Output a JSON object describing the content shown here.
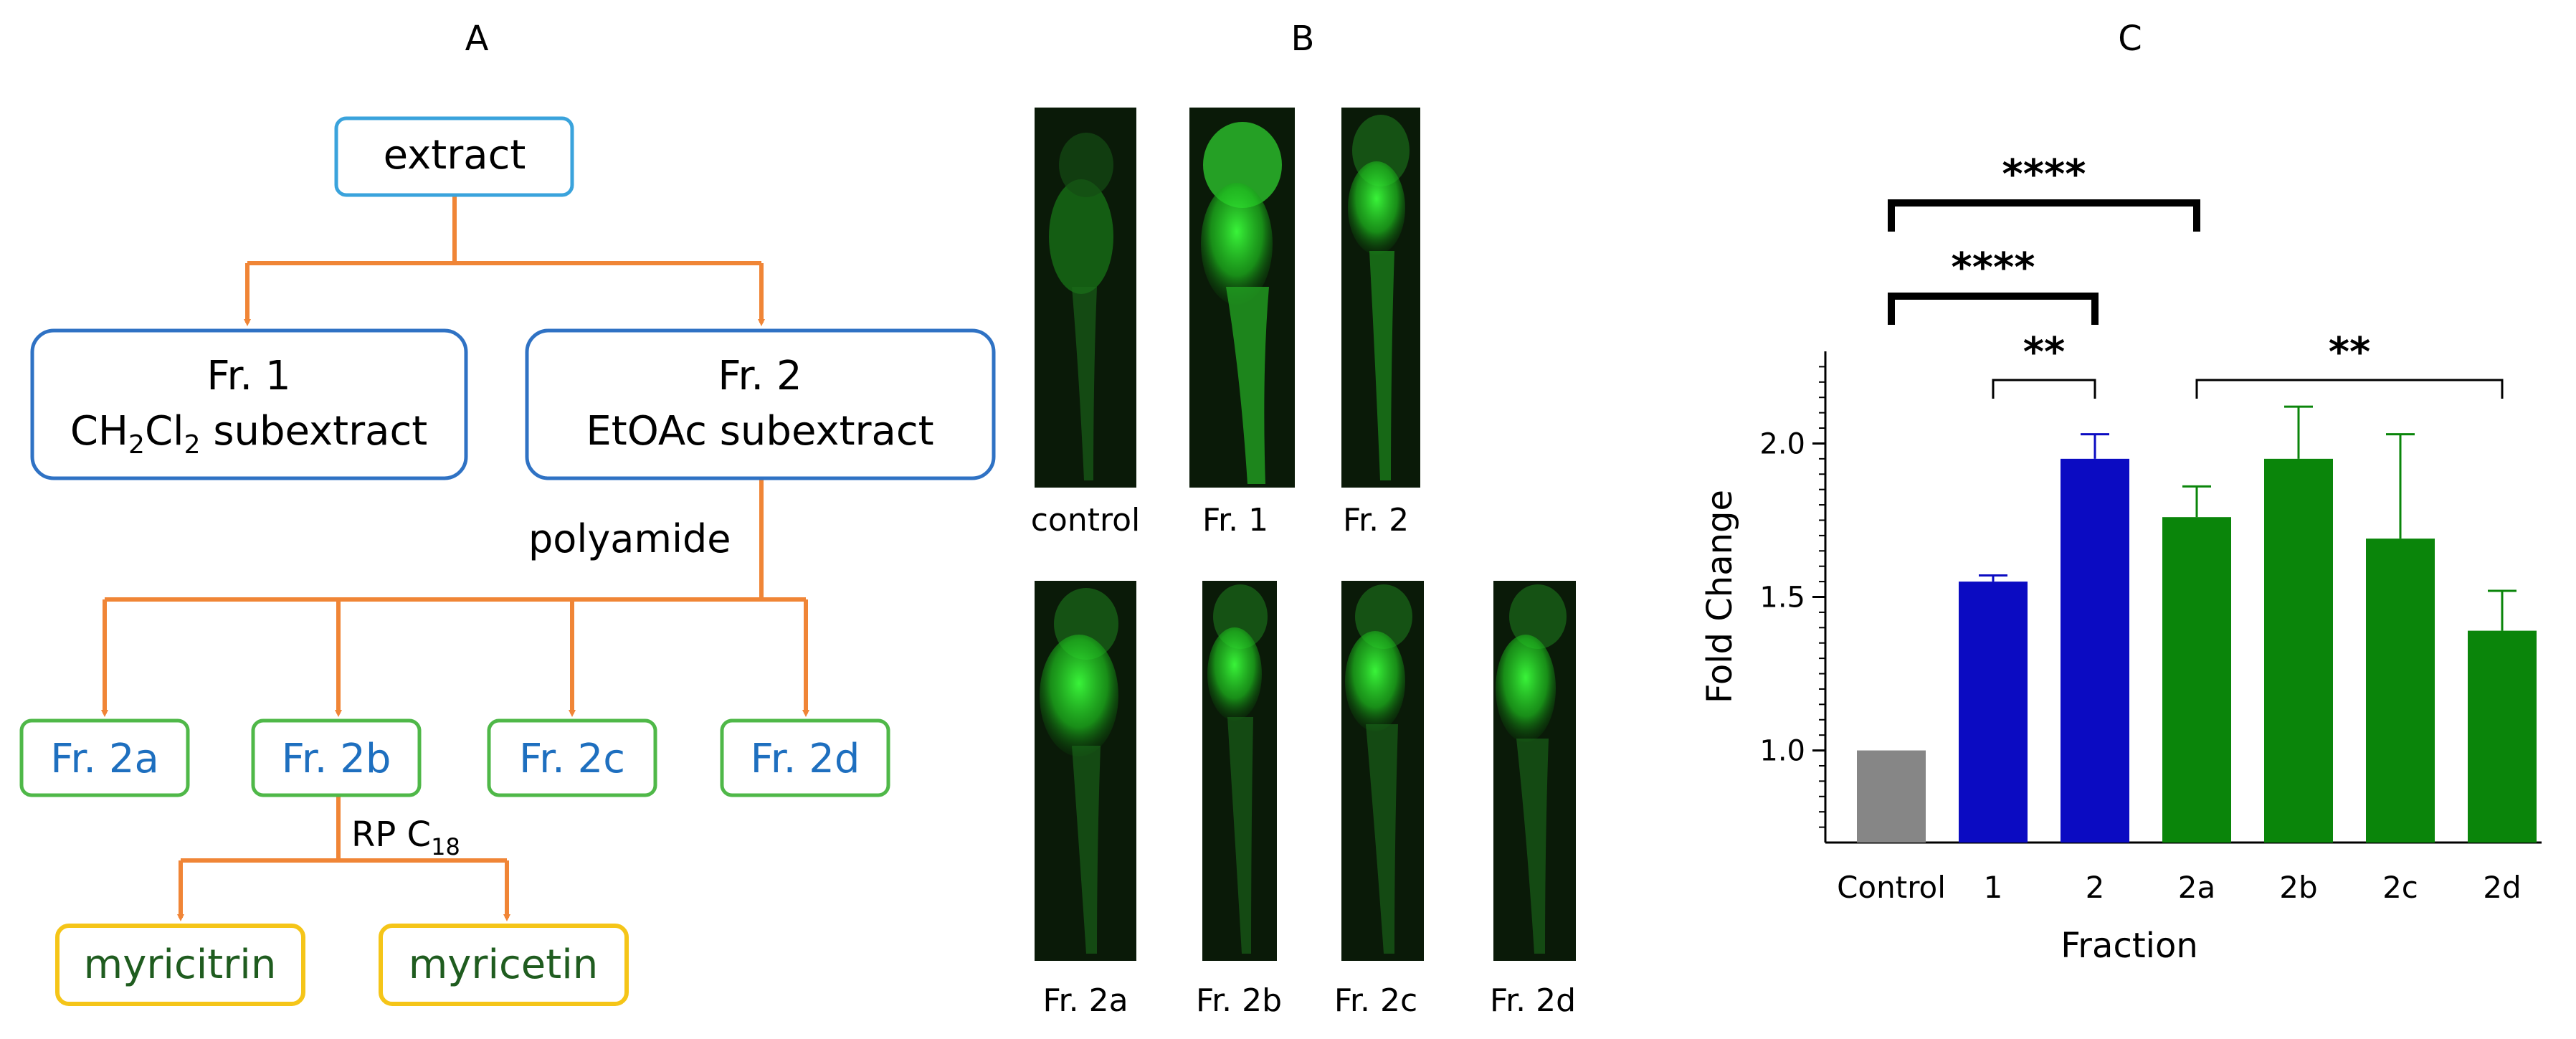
{
  "panels": {
    "a_label": "A",
    "b_label": "B",
    "c_label": "C"
  },
  "flowchart": {
    "root": "extract",
    "fr1_title": "Fr. 1",
    "fr1_sub_prefix": "CH",
    "fr1_sub_2a": "2",
    "fr1_sub_mid": "Cl",
    "fr1_sub_2b": "2",
    "fr1_sub_suffix": " subextract",
    "fr2_title": "Fr. 2",
    "fr2_sub": "EtOAc subextract",
    "step1": "polyamide",
    "fr2a": "Fr. 2a",
    "fr2b": "Fr. 2b",
    "fr2c": "Fr. 2c",
    "fr2d": "Fr. 2d",
    "step2_prefix": "RP C",
    "step2_sub": "18",
    "compound1": "myricitrin",
    "compound2": "myricetin",
    "colors": {
      "arrow": "#f08536",
      "root_border": "#3aa3dc",
      "fraction_border": "#2f72c4",
      "sub_border": "#4fb848",
      "sub_text": "#1e6fbf",
      "compound_border": "#f5c518",
      "compound_text": "#1f5c1f"
    }
  },
  "images": {
    "row1": [
      "control",
      "Fr. 1",
      "Fr. 2"
    ],
    "row2": [
      "Fr. 2a",
      "Fr. 2b",
      "Fr. 2c",
      "Fr. 2d"
    ]
  },
  "chart_data": {
    "type": "bar",
    "categories": [
      "Control",
      "1",
      "2",
      "2a",
      "2b",
      "2c",
      "2d"
    ],
    "values": [
      1.0,
      1.55,
      1.95,
      1.76,
      1.95,
      1.69,
      1.39
    ],
    "errors": [
      0,
      0.02,
      0.08,
      0.1,
      0.17,
      0.34,
      0.13
    ],
    "colors": [
      "#868686",
      "#0b0bc2",
      "#0b0bc2",
      "#0a850a",
      "#0a850a",
      "#0a850a",
      "#0a850a"
    ],
    "xlabel": "Fraction",
    "ylabel": "Fold Change",
    "ylim": [
      0.7,
      2.3
    ],
    "yticks": [
      "1.0",
      "1.5",
      "2.0"
    ],
    "annotations": [
      {
        "from": "Control",
        "to": "2a",
        "text": "****"
      },
      {
        "from": "Control",
        "to": "2",
        "text": "****"
      },
      {
        "from": "1",
        "to": "2",
        "text": "**"
      },
      {
        "from": "2a",
        "to": "2d",
        "text": "**"
      }
    ]
  }
}
